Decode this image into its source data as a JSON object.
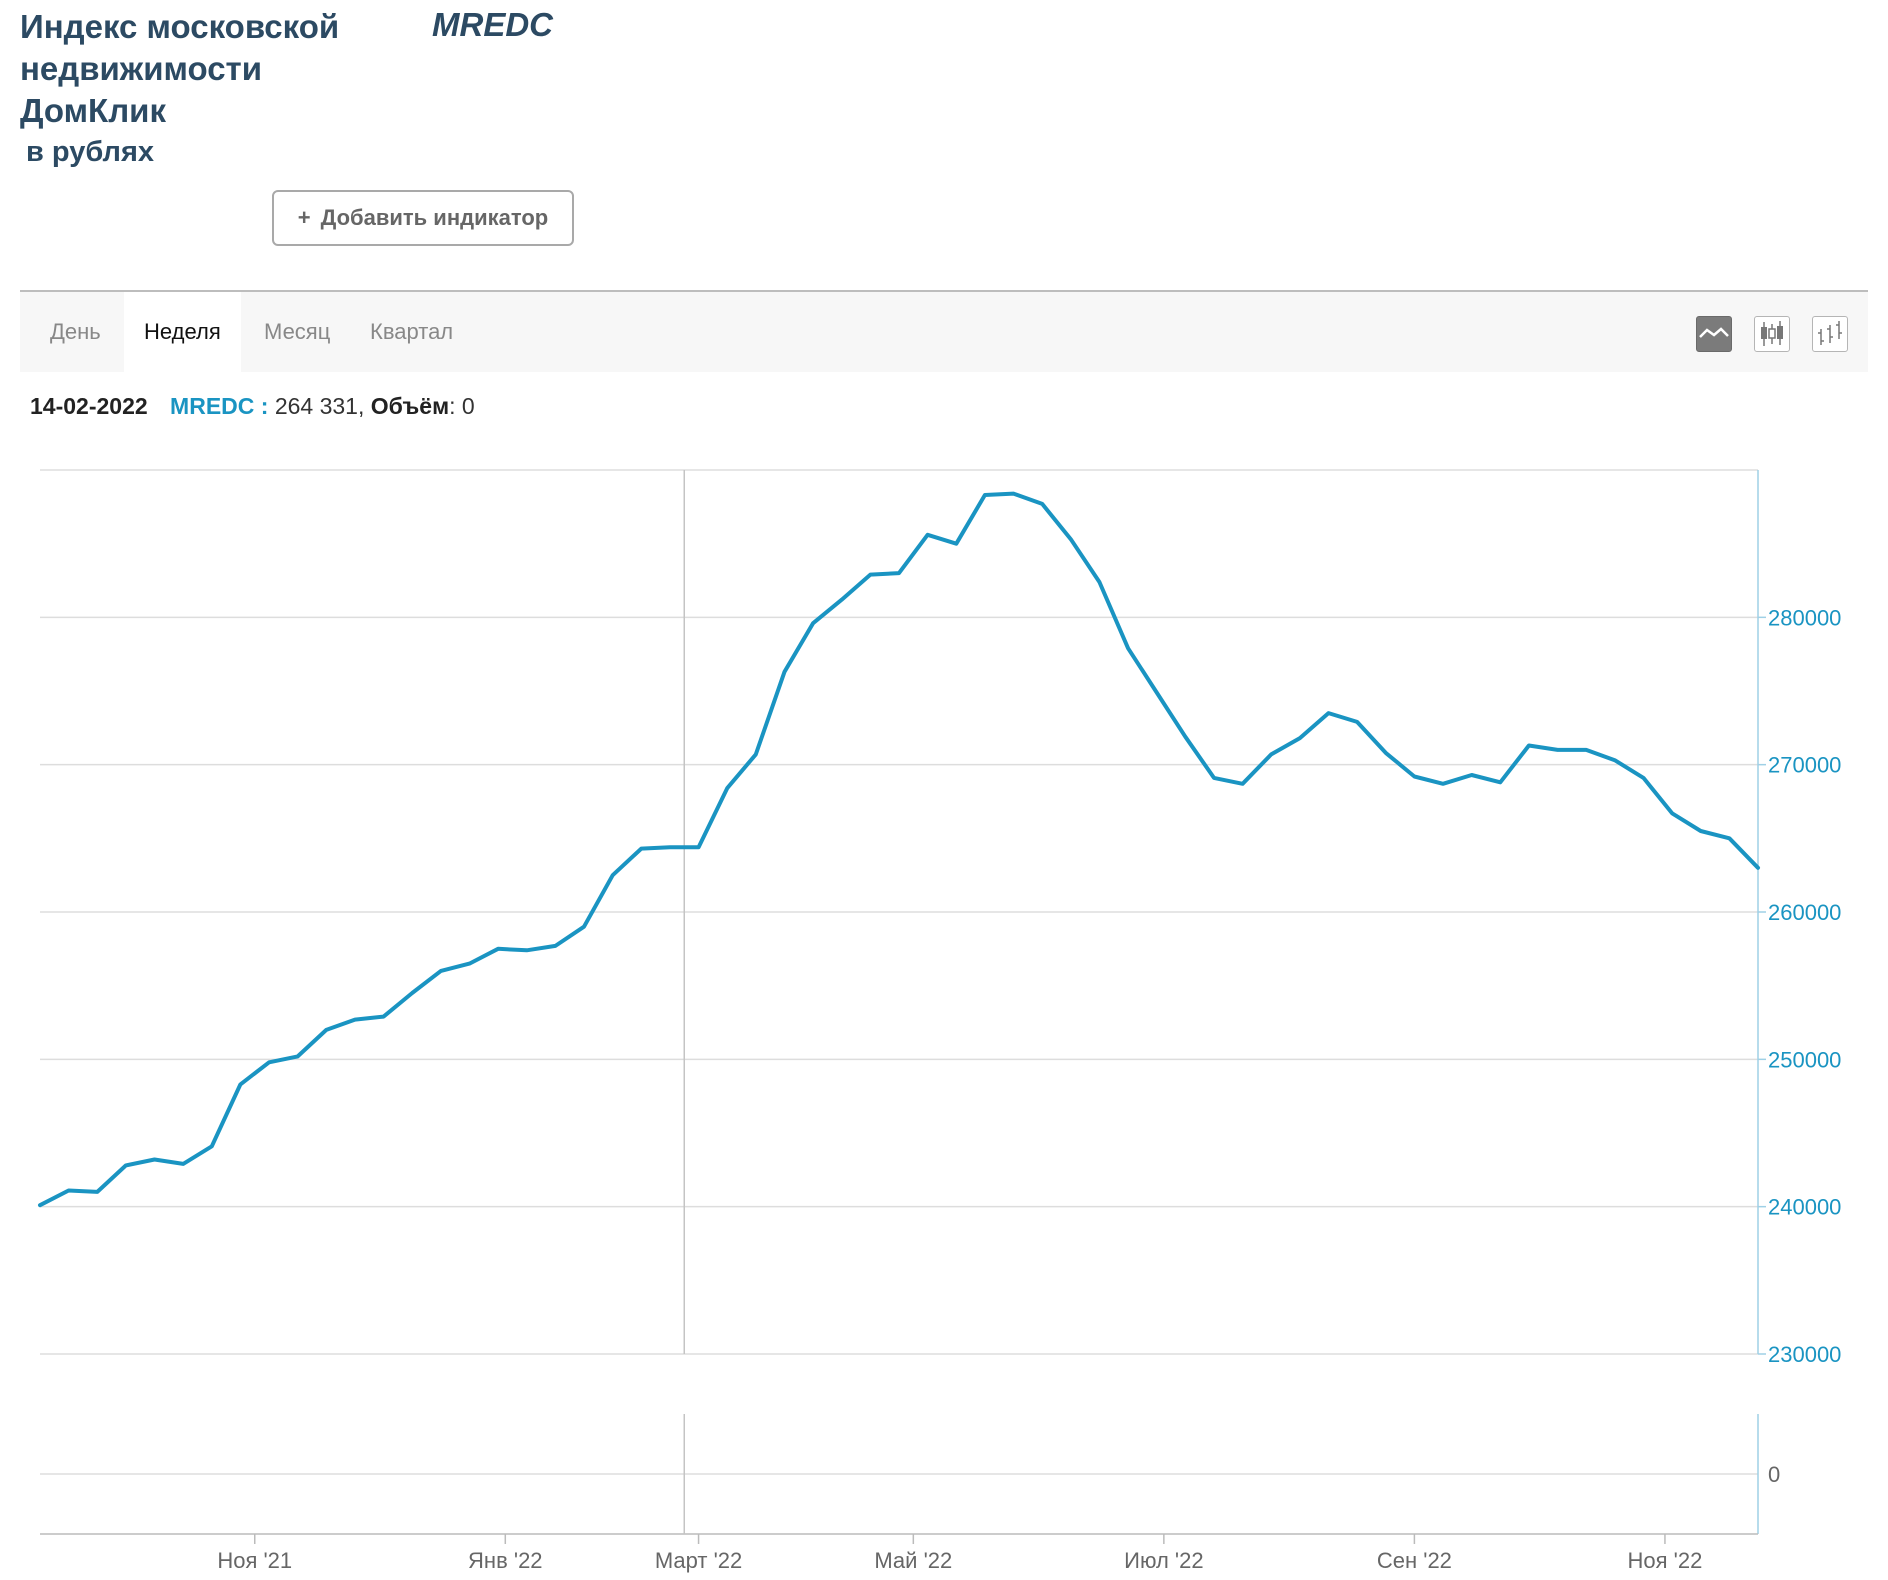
{
  "header": {
    "title": "Индекс московской недвижимости ДомКлик",
    "ticker": "MREDC",
    "subtitle": "в рублях",
    "add_indicator_icon": "+",
    "add_indicator_label": "Добавить индикатор"
  },
  "toolbar": {
    "tabs": [
      {
        "label": "День"
      },
      {
        "label": "Неделя"
      },
      {
        "label": "Месяц"
      },
      {
        "label": "Квартал"
      }
    ],
    "active_tab": "Неделя",
    "chart_types": [
      "line-chart-icon",
      "candlestick-icon",
      "ohlc-bars-icon"
    ]
  },
  "info": {
    "date": "14-02-2022",
    "symbol_label": "MREDC :",
    "value": "264 331",
    "volume_label": "Объём",
    "volume_value": "0"
  },
  "colors": {
    "line": "#1a94c2",
    "axis_label": "#1a94c2",
    "grid": "#dddddd",
    "header": "#2c4a63"
  },
  "chart_data": {
    "type": "line",
    "title": "Индекс московской недвижимости ДомКлик",
    "ylabel": "в рублях",
    "ylim": [
      230000,
      290000
    ],
    "yticks": [
      230000,
      240000,
      250000,
      260000,
      270000,
      280000
    ],
    "x_range": [
      0,
      60
    ],
    "x_ticks": [
      {
        "pos": 7.5,
        "label": "Ноя '21"
      },
      {
        "pos": 16.25,
        "label": "Янв '22"
      },
      {
        "pos": 23,
        "label": "Март '22"
      },
      {
        "pos": 30.5,
        "label": "Май '22"
      },
      {
        "pos": 39.25,
        "label": "Июл '22"
      },
      {
        "pos": 48,
        "label": "Сен '22"
      },
      {
        "pos": 56.75,
        "label": "Ноя '22"
      }
    ],
    "crosshair_x": 22.5,
    "series": [
      {
        "name": "MREDC",
        "values": [
          240100,
          241100,
          241000,
          242800,
          243200,
          242900,
          244100,
          248300,
          249800,
          250200,
          252000,
          252700,
          252900,
          254500,
          256000,
          256500,
          257500,
          257400,
          257700,
          259000,
          262500,
          264300,
          264400,
          264400,
          268400,
          270700,
          276300,
          279600,
          281200,
          282900,
          283000,
          285600,
          285000,
          288300,
          288400,
          287700,
          285300,
          282400,
          277900,
          274900,
          271900,
          269100,
          268700,
          270700,
          271800,
          273500,
          272900,
          270800,
          269200,
          268700,
          269300,
          268800,
          271300,
          271000,
          271000,
          270300,
          269100,
          266700,
          265500,
          265000,
          263000
        ]
      }
    ],
    "volume": {
      "ylim": [
        -1,
        1
      ],
      "yticks": [
        0
      ],
      "values": [
        0
      ]
    }
  }
}
